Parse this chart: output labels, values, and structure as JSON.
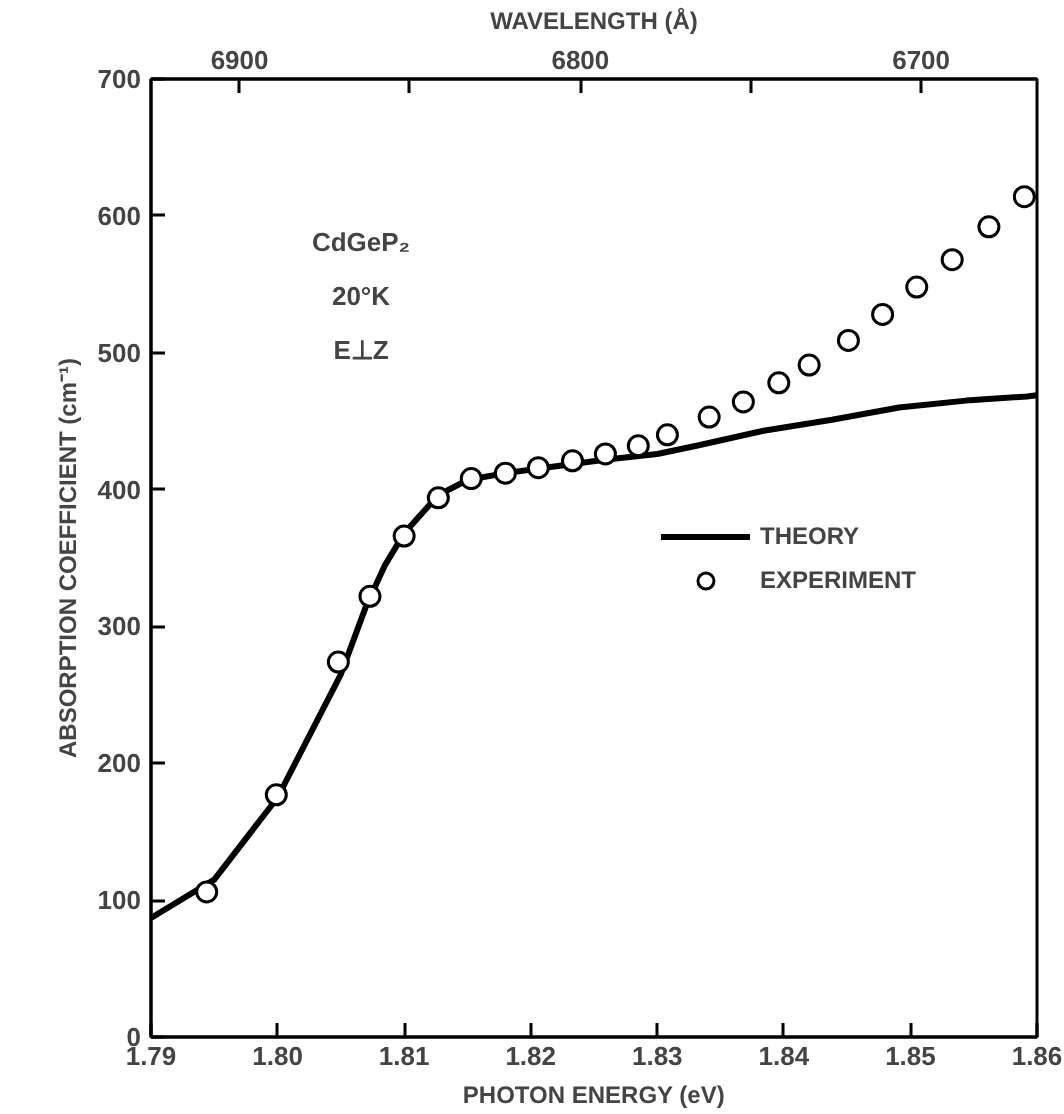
{
  "chart_data": {
    "type": "line",
    "xlabel": "PHOTON ENERGY (eV)",
    "ylabel": "ABSORPTION COEFFICIENT (cm⁻¹)",
    "x2label": "WAVELENGTH (Å)",
    "annotations": [
      "CdGeP₂",
      "20°K",
      "E⊥Z"
    ],
    "xlim": [
      1.79,
      1.86
    ],
    "xticks": [
      1.79,
      {
        "value": 1.8,
        "label": "1.80"
      },
      1.81,
      1.82,
      1.83,
      1.84,
      1.85,
      1.86
    ],
    "ylim": [
      0,
      700
    ],
    "yticks": [
      0,
      100,
      200,
      300,
      400,
      500,
      600,
      700
    ],
    "x2lim": [
      6926,
      6666
    ],
    "x2ticks": [
      6900,
      {
        "value": 6850,
        "label": null
      },
      6800,
      {
        "value": 6750,
        "label": null
      },
      6700
    ],
    "grid": false,
    "legend": "right",
    "series": [
      {
        "name": "THEORY",
        "color": "#000000",
        "line_style": "solid",
        "x": [
          1.79,
          1.795,
          1.8,
          1.805,
          1.807,
          1.8085,
          1.81,
          1.8127,
          1.815,
          1.818,
          1.822,
          1.826,
          1.83,
          1.8331,
          1.8384,
          1.8438,
          1.8491,
          1.8544,
          1.8592,
          1.86
        ],
        "values": [
          87,
          115,
          175,
          265,
          315,
          345,
          368,
          396,
          407,
          412,
          417,
          422,
          426,
          432,
          443,
          451,
          460,
          465,
          468,
          469
        ]
      },
      {
        "name": "EXPERIMENT",
        "type": "scatter",
        "color": "#000000",
        "marker": "circle",
        "x": [
          1.7944,
          1.7999,
          1.8048,
          1.8073,
          1.81,
          1.8127,
          1.8153,
          1.818,
          1.8206,
          1.8233,
          1.8259,
          1.8285,
          1.8308,
          1.8341,
          1.8368,
          1.8396,
          1.842,
          1.8451,
          1.8478,
          1.8505,
          1.8533,
          1.8562,
          1.859
        ],
        "values": [
          106,
          177,
          274,
          322,
          366,
          394,
          408,
          412,
          416,
          421,
          426,
          432,
          440,
          453,
          464,
          478,
          491,
          509,
          528,
          548,
          568,
          592,
          614
        ]
      }
    ]
  }
}
